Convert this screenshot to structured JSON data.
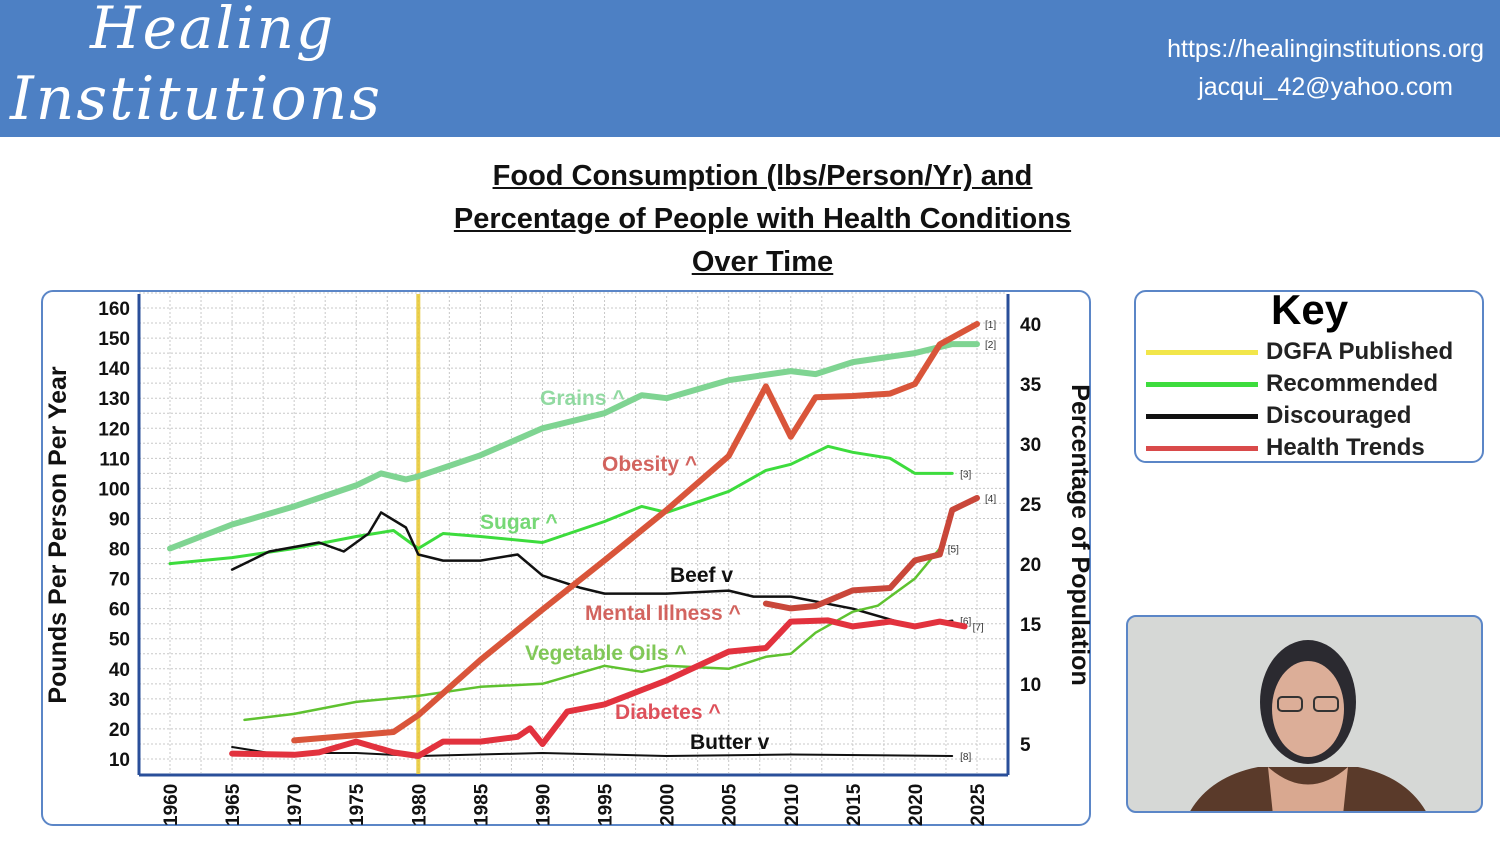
{
  "header": {
    "logo_line1": "Healing",
    "logo_line2": "Institutions",
    "url": "https://healinginstitutions.org",
    "email": "jacqui_42@yahoo.com",
    "bg_color": "#4d80c4"
  },
  "title": [
    "Food Consumption (lbs/Person/Yr) and",
    "Percentage of People with Health Conditions",
    "Over Time"
  ],
  "key": {
    "title": "Key",
    "items": [
      {
        "label": "DGFA Published",
        "color": "#f2e64a"
      },
      {
        "label": "Recommended",
        "color": "#3ddc3d"
      },
      {
        "label": "Discouraged",
        "color": "#111111"
      },
      {
        "label": "Health Trends",
        "color": "#d94a4a"
      }
    ]
  },
  "chart_data": {
    "type": "line",
    "title": "Food Consumption (lbs/Person/Yr) and Percentage of People with Health Conditions Over Time",
    "xlabel": "",
    "ylabel": "Pounds Per Person Per Year",
    "y2label": "Percentage of Population",
    "xlim": [
      1960,
      2025
    ],
    "ylim": [
      10,
      160
    ],
    "y2lim": [
      5,
      40
    ],
    "xticks": [
      "1960",
      "1965",
      "1970",
      "1975",
      "1980",
      "1985",
      "1990",
      "1995",
      "2000",
      "2005",
      "2010",
      "2015",
      "2020",
      "2025"
    ],
    "yticks": [
      "160",
      "150",
      "140",
      "130",
      "120",
      "110",
      "100",
      "90",
      "80",
      "70",
      "60",
      "50",
      "40",
      "30",
      "20",
      "10"
    ],
    "y2ticks": [
      "40",
      "35",
      "30",
      "25",
      "20",
      "15",
      "10",
      "5"
    ],
    "vline": {
      "x": 1980,
      "label": "DGFA Published",
      "color": "#e8c830"
    },
    "grid": true,
    "series": [
      {
        "name": "Grains",
        "annotation": "Grains ^",
        "note": "[2]",
        "axis": "left",
        "color": "#7fd492",
        "width": 6,
        "x": [
          1960,
          1965,
          1970,
          1975,
          1977,
          1979,
          1980,
          1985,
          1990,
          1995,
          1998,
          2000,
          2005,
          2010,
          2012,
          2015,
          2020,
          2023,
          2025
        ],
        "y": [
          80,
          88,
          94,
          101,
          105,
          103,
          104,
          111,
          120,
          125,
          131,
          130,
          136,
          139,
          138,
          142,
          145,
          148,
          148
        ]
      },
      {
        "name": "Sugar",
        "annotation": "Sugar ^",
        "note": "[3]",
        "axis": "left",
        "color": "#3ddc3d",
        "width": 3,
        "x": [
          1960,
          1965,
          1970,
          1975,
          1978,
          1980,
          1982,
          1985,
          1990,
          1995,
          1998,
          2000,
          2005,
          2008,
          2010,
          2013,
          2015,
          2018,
          2020,
          2023
        ],
        "y": [
          75,
          77,
          80,
          84,
          86,
          80,
          85,
          84,
          82,
          89,
          94,
          92,
          99,
          106,
          108,
          114,
          112,
          110,
          105,
          105
        ]
      },
      {
        "name": "Beef",
        "annotation": "Beef v",
        "note": "[6]",
        "axis": "left",
        "color": "#111111",
        "width": 2.5,
        "x": [
          1965,
          1968,
          1972,
          1974,
          1976,
          1977,
          1979,
          1980,
          1982,
          1985,
          1988,
          1990,
          1993,
          1995,
          2000,
          2005,
          2007,
          2010,
          2015,
          2020,
          2023
        ],
        "y": [
          73,
          79,
          82,
          79,
          85,
          92,
          87,
          78,
          76,
          76,
          78,
          71,
          67,
          65,
          65,
          66,
          64,
          64,
          60,
          54,
          56
        ]
      },
      {
        "name": "Vegetable Oils",
        "annotation": "Vegetable Oils ^",
        "note": "[5]",
        "axis": "left",
        "color": "#5fc230",
        "width": 2.5,
        "x": [
          1966,
          1970,
          1975,
          1980,
          1985,
          1990,
          1995,
          1998,
          2000,
          2005,
          2008,
          2010,
          2012,
          2015,
          2017,
          2020,
          2022
        ],
        "y": [
          23,
          25,
          29,
          31,
          34,
          35,
          41,
          39,
          41,
          40,
          44,
          45,
          52,
          59,
          61,
          70,
          80
        ]
      },
      {
        "name": "Butter",
        "annotation": "Butter v",
        "note": "[8]",
        "axis": "left",
        "color": "#111111",
        "width": 2,
        "x": [
          1965,
          1968,
          1975,
          1980,
          1990,
          2000,
          2010,
          2023
        ],
        "y": [
          14,
          12,
          12,
          11,
          12,
          11,
          11.5,
          11
        ]
      },
      {
        "name": "Obesity",
        "annotation": "Obesity ^",
        "note": "[1]",
        "axis": "right",
        "color": "#d9553a",
        "width": 6,
        "x": [
          1970,
          1978,
          1980,
          1985,
          1990,
          1995,
          2000,
          2005,
          2008,
          2010,
          2012,
          2015,
          2018,
          2020,
          2022,
          2025
        ],
        "y": [
          5.3,
          6.0,
          7.4,
          12,
          16.2,
          20.3,
          24.5,
          29,
          34.8,
          30.6,
          33.9,
          34,
          34.2,
          35,
          38.3,
          40
        ]
      },
      {
        "name": "Mental Illness",
        "annotation": "Mental Illness ^",
        "note": "[4]",
        "axis": "right",
        "color": "#c9473a",
        "width": 6,
        "x": [
          2008,
          2010,
          2012,
          2015,
          2018,
          2020,
          2022,
          2023,
          2025
        ],
        "y": [
          16.7,
          16.3,
          16.5,
          17.8,
          18,
          20.3,
          20.8,
          24.5,
          25.5
        ]
      },
      {
        "name": "Diabetes",
        "annotation": "Diabetes ^",
        "note": "[7]",
        "axis": "right",
        "color": "#e2323e",
        "width": 6,
        "x": [
          1965,
          1970,
          1972,
          1975,
          1978,
          1980,
          1982,
          1985,
          1988,
          1989,
          1990,
          1992,
          1995,
          1998,
          2000,
          2005,
          2008,
          2010,
          2013,
          2015,
          2018,
          2020,
          2022,
          2024
        ],
        "y": [
          4.2,
          4.1,
          4.3,
          5.2,
          4.3,
          4,
          5.2,
          5.2,
          5.6,
          6.3,
          5,
          7.7,
          8.3,
          9.5,
          10.3,
          12.7,
          13,
          15.2,
          15.3,
          14.8,
          15.2,
          14.8,
          15.2,
          14.8
        ]
      }
    ]
  }
}
